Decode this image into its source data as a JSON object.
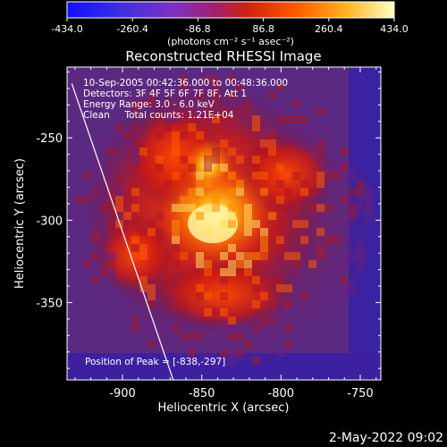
{
  "colorbar": {
    "tick_labels": [
      "-434.0",
      "-260.4",
      "-86.8",
      "86.8",
      "260.4",
      "434.0"
    ],
    "unit_label": "(photons cm⁻² s⁻¹ asec⁻²)",
    "range": [
      -434.0,
      434.0
    ]
  },
  "title": "Reconstructed RHESSI Image",
  "info_lines": [
    "10-Sep-2005 00:42:36.000 to 00:48:36.000",
    "Detectors: 3F 4F 5F 6F 7F 8F, Att 1",
    "Energy Range: 3.0 - 6.0 keV",
    "Clean     Total counts: 1.21E+04"
  ],
  "peak_label": "Position of Peak = [-838,-297]",
  "axes": {
    "xlabel": "Heliocentric X (arcsec)",
    "ylabel": "Heliocentric Y (arcsec)",
    "x_ticks": [
      "-900",
      "-850",
      "-800",
      "-750"
    ],
    "y_ticks": [
      "-250",
      "-300",
      "-350"
    ],
    "x_tick_values": [
      -900,
      -850,
      -800,
      -750
    ],
    "y_tick_values": [
      -250,
      -300,
      -350
    ],
    "xlim": [
      -935,
      -737
    ],
    "ylim": [
      -397,
      -207
    ]
  },
  "peak": {
    "x": -838,
    "y": -297
  },
  "limb": [
    [
      -932,
      -217
    ],
    [
      -868,
      -397
    ]
  ],
  "timestamp": "2-May-2022 09:02"
}
